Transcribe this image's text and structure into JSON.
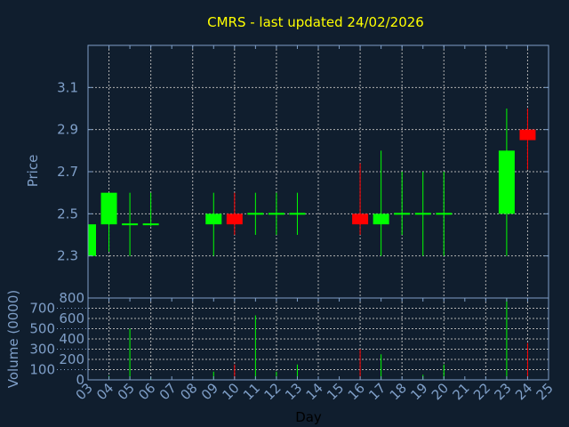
{
  "title": "CMRS - last updated 24/02/2026",
  "colors": {
    "background": "#101e2e",
    "title": "#ffff00",
    "axis": "#7f9fc8",
    "grid": "#b0b0b0",
    "up": "#00ff00",
    "down": "#ff0000",
    "xlabel": "#000000"
  },
  "chart_data": [
    {
      "type": "candlestick",
      "ylabel": "Price",
      "ylim": [
        2.1,
        3.3
      ],
      "yticks": [
        "3.1",
        "2.9",
        "2.7",
        "2.5",
        "2.3"
      ],
      "ytick_values": [
        3.1,
        2.9,
        2.7,
        2.5,
        2.3
      ],
      "grid": true,
      "xlim": [
        "03",
        "25"
      ],
      "candles": [
        {
          "day": "03",
          "open": 2.3,
          "high": 2.45,
          "low": 2.3,
          "close": 2.45
        },
        {
          "day": "04",
          "open": 2.45,
          "high": 2.6,
          "low": 2.32,
          "close": 2.6
        },
        {
          "day": "05",
          "open": 2.45,
          "high": 2.6,
          "low": 2.3,
          "close": 2.45
        },
        {
          "day": "06",
          "open": 2.45,
          "high": 2.6,
          "low": 2.44,
          "close": 2.45
        },
        {
          "day": "09",
          "open": 2.45,
          "high": 2.6,
          "low": 2.3,
          "close": 2.5
        },
        {
          "day": "10",
          "open": 2.5,
          "high": 2.6,
          "low": 2.4,
          "close": 2.45
        },
        {
          "day": "11",
          "open": 2.5,
          "high": 2.6,
          "low": 2.4,
          "close": 2.5
        },
        {
          "day": "12",
          "open": 2.5,
          "high": 2.6,
          "low": 2.4,
          "close": 2.5
        },
        {
          "day": "13",
          "open": 2.5,
          "high": 2.6,
          "low": 2.4,
          "close": 2.5
        },
        {
          "day": "16",
          "open": 2.5,
          "high": 2.74,
          "low": 2.4,
          "close": 2.45
        },
        {
          "day": "17",
          "open": 2.45,
          "high": 2.8,
          "low": 2.3,
          "close": 2.5
        },
        {
          "day": "18",
          "open": 2.5,
          "high": 2.7,
          "low": 2.4,
          "close": 2.5
        },
        {
          "day": "19",
          "open": 2.5,
          "high": 2.7,
          "low": 2.3,
          "close": 2.5
        },
        {
          "day": "20",
          "open": 2.5,
          "high": 2.7,
          "low": 2.3,
          "close": 2.5
        },
        {
          "day": "23",
          "open": 2.5,
          "high": 3.0,
          "low": 2.3,
          "close": 2.8
        },
        {
          "day": "24",
          "open": 2.9,
          "high": 3.0,
          "low": 2.71,
          "close": 2.85
        }
      ]
    },
    {
      "type": "bar",
      "ylabel": "Volume (0000)",
      "xlabel": "Day",
      "ylim": [
        0,
        800
      ],
      "yticks": [
        "800",
        "700",
        "600",
        "500",
        "400",
        "300",
        "200",
        "100",
        "0"
      ],
      "ytick_values": [
        800,
        700,
        600,
        500,
        400,
        300,
        200,
        100,
        0
      ],
      "grid": true,
      "categories": [
        "03",
        "04",
        "05",
        "06",
        "07",
        "08",
        "09",
        "10",
        "11",
        "12",
        "13",
        "14",
        "15",
        "16",
        "17",
        "18",
        "19",
        "20",
        "21",
        "22",
        "23",
        "24",
        "25"
      ],
      "bars": [
        {
          "day": "04",
          "value": 40,
          "direction": "up"
        },
        {
          "day": "05",
          "value": 500,
          "direction": "up"
        },
        {
          "day": "06",
          "value": 20,
          "direction": "up"
        },
        {
          "day": "09",
          "value": 80,
          "direction": "up"
        },
        {
          "day": "10",
          "value": 150,
          "direction": "down"
        },
        {
          "day": "11",
          "value": 630,
          "direction": "up"
        },
        {
          "day": "12",
          "value": 80,
          "direction": "up"
        },
        {
          "day": "13",
          "value": 150,
          "direction": "up"
        },
        {
          "day": "16",
          "value": 300,
          "direction": "down"
        },
        {
          "day": "17",
          "value": 250,
          "direction": "up"
        },
        {
          "day": "19",
          "value": 50,
          "direction": "up"
        },
        {
          "day": "20",
          "value": 150,
          "direction": "up"
        },
        {
          "day": "23",
          "value": 800,
          "direction": "up"
        },
        {
          "day": "24",
          "value": 360,
          "direction": "down"
        }
      ]
    }
  ]
}
